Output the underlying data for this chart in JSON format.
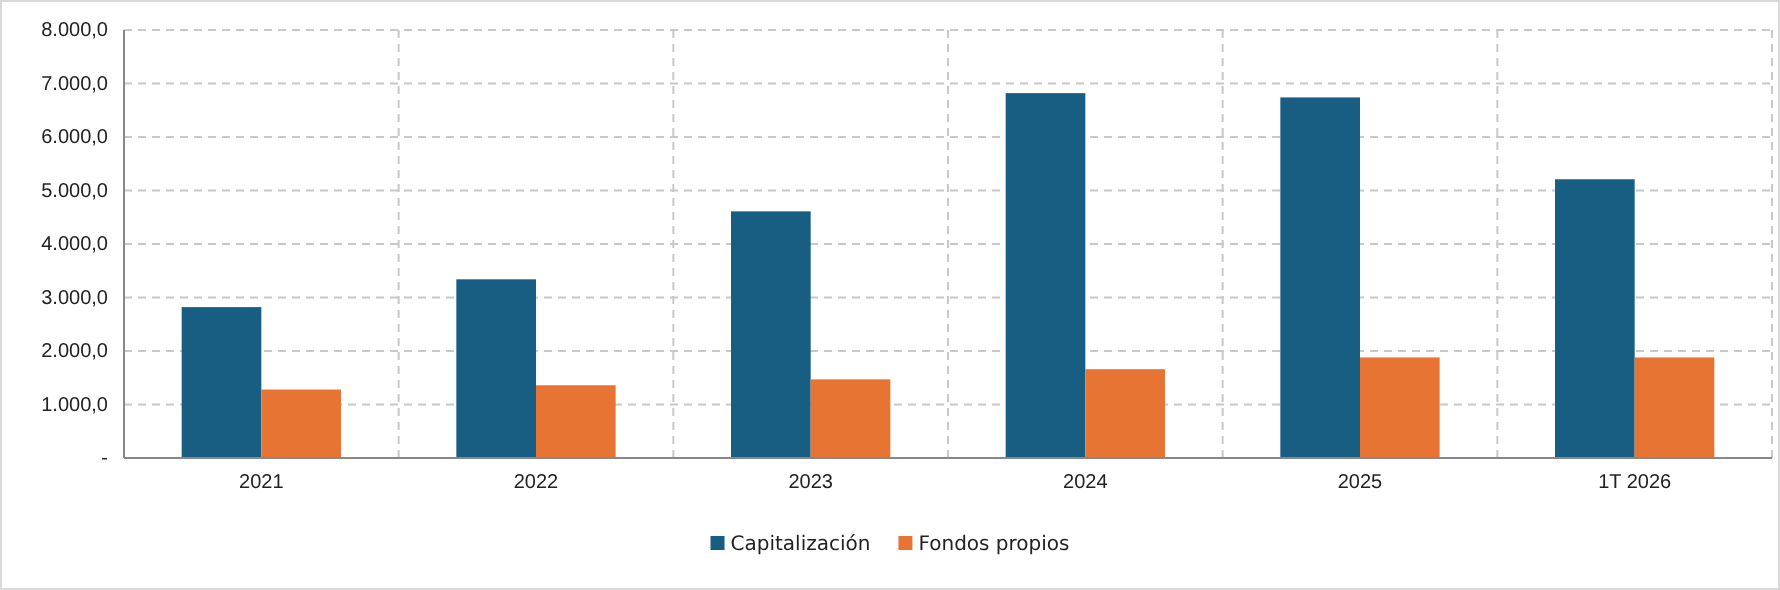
{
  "chart_data": {
    "type": "bar",
    "categories": [
      "2021",
      "2022",
      "2023",
      "2024",
      "2025",
      "1T 2026"
    ],
    "series": [
      {
        "name": "Capitalización",
        "color": "#175e82",
        "values": [
          2820,
          3340,
          4610,
          6820,
          6740,
          5210
        ]
      },
      {
        "name": "Fondos propios",
        "color": "#e87434",
        "values": [
          1280,
          1360,
          1470,
          1660,
          1880,
          1880
        ]
      }
    ],
    "ylim": [
      0,
      8000
    ],
    "yticks": [
      {
        "value": 0,
        "label": "-"
      },
      {
        "value": 1000,
        "label": "1.000,0"
      },
      {
        "value": 2000,
        "label": "2.000,0"
      },
      {
        "value": 3000,
        "label": "3.000,0"
      },
      {
        "value": 4000,
        "label": "4.000,0"
      },
      {
        "value": 5000,
        "label": "5.000,0"
      },
      {
        "value": 6000,
        "label": "6.000,0"
      },
      {
        "value": 7000,
        "label": "7.000,0"
      },
      {
        "value": 8000,
        "label": "8.000,0"
      }
    ],
    "grid": true,
    "legend": "bottom"
  }
}
